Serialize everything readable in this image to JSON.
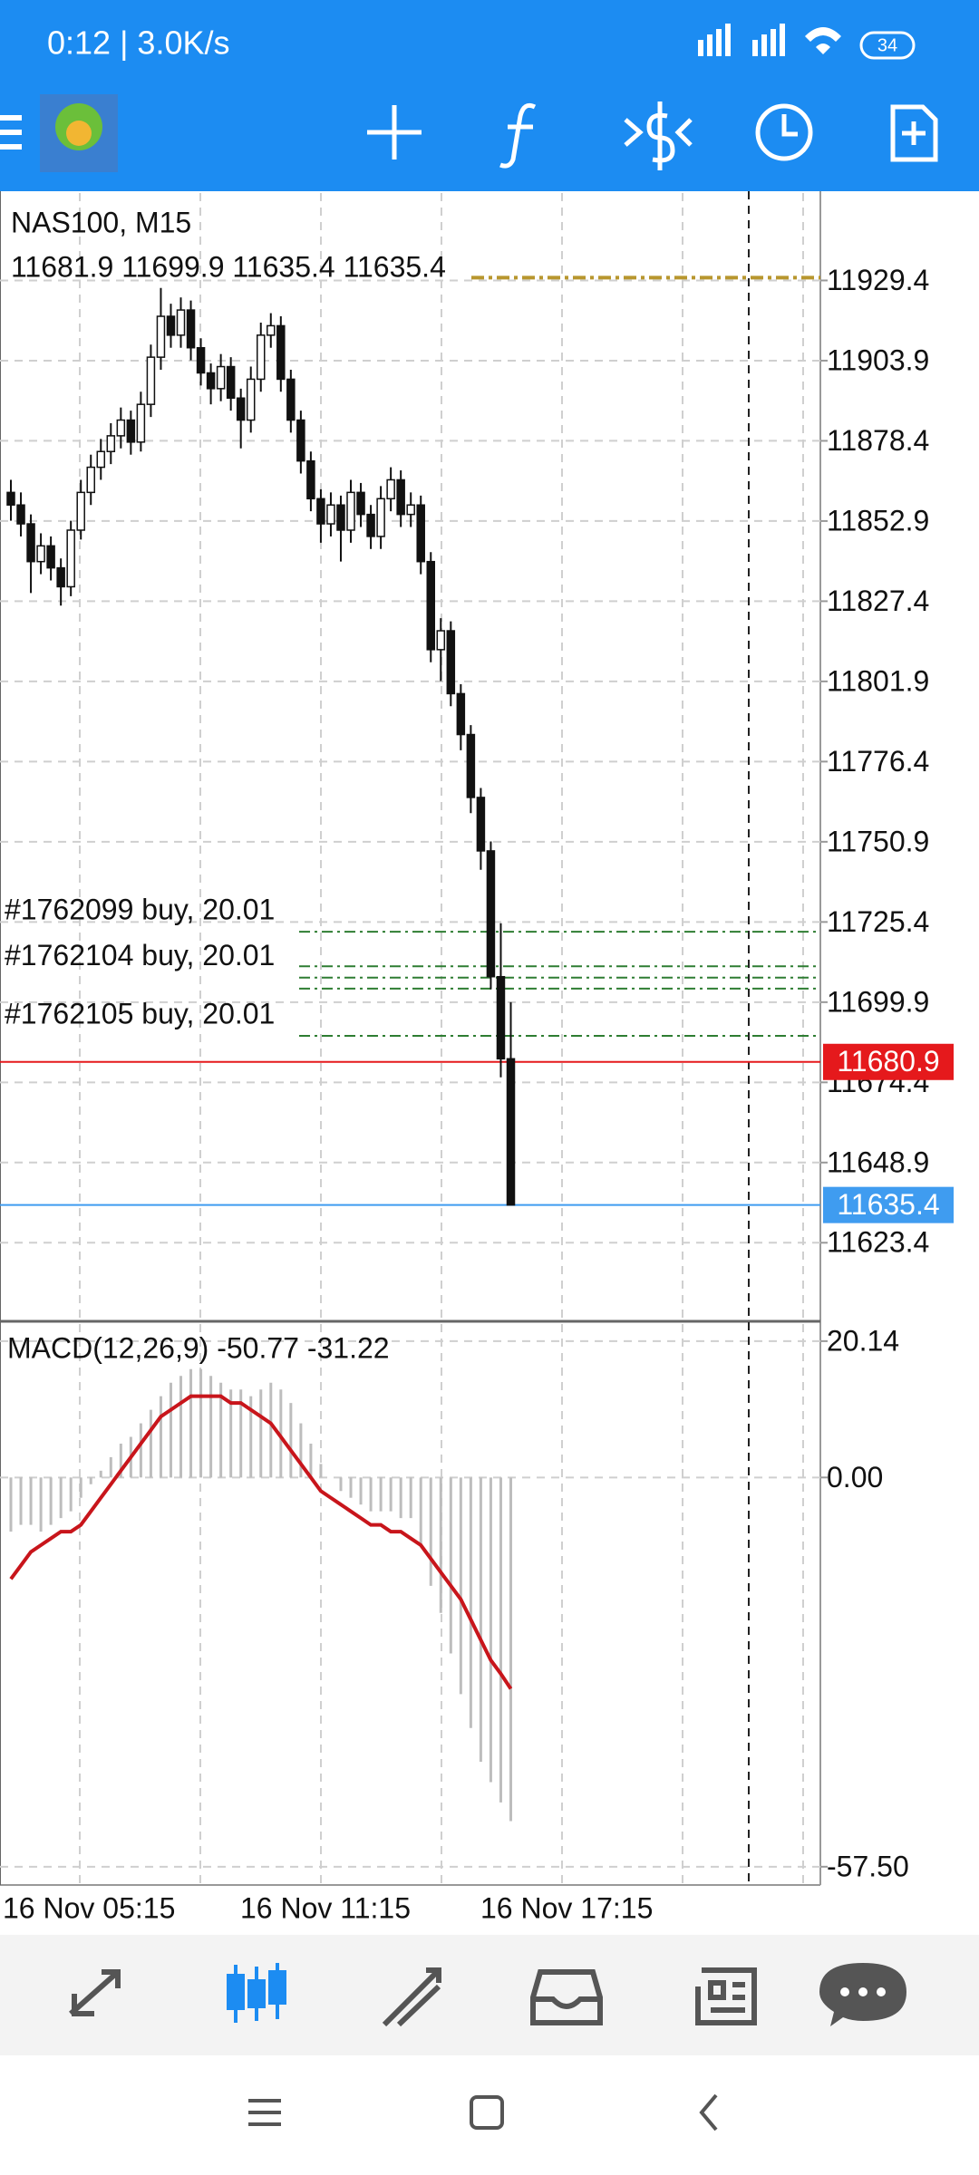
{
  "status_bar": {
    "time_speed": "0:12 | 3.0K/s",
    "battery": "34"
  },
  "chart_data": {
    "type": "candlestick",
    "symbol_label": "NAS100, M15",
    "ohlc_label": "11681.9 11699.9 11635.4 11635.4",
    "open": [
      11862,
      11858,
      11852,
      11840,
      11845,
      11838,
      11832,
      11850,
      11862,
      11870,
      11875,
      11880,
      11885,
      11878,
      11890,
      11905,
      11918,
      11912,
      11920,
      11908,
      11900,
      11895,
      11902,
      11892,
      11885,
      11898,
      11912,
      11915,
      11898,
      11885,
      11872,
      11860,
      11852,
      11858,
      11850,
      11862,
      11855,
      11848,
      11860,
      11866,
      11855,
      11858,
      11840,
      11812,
      11818,
      11798,
      11785,
      11765,
      11748,
      11708,
      11681.9
    ],
    "high": [
      11866,
      11862,
      11855,
      11849,
      11848,
      11841,
      11853,
      11866,
      11874,
      11879,
      11884,
      11889,
      11888,
      11894,
      11909,
      11927,
      11922,
      11924,
      11923,
      11911,
      11903,
      11906,
      11905,
      11895,
      11902,
      11916,
      11919,
      11918,
      11901,
      11888,
      11875,
      11863,
      11862,
      11861,
      11866,
      11865,
      11858,
      11864,
      11870,
      11869,
      11862,
      11861,
      11843,
      11822,
      11821,
      11801,
      11788,
      11768,
      11751,
      11725,
      11699.9
    ],
    "low": [
      11853,
      11848,
      11830,
      11836,
      11834,
      11826,
      11829,
      11847,
      11858,
      11866,
      11871,
      11876,
      11874,
      11875,
      11886,
      11901,
      11908,
      11908,
      11904,
      11896,
      11890,
      11891,
      11888,
      11876,
      11881,
      11894,
      11908,
      11894,
      11881,
      11868,
      11856,
      11846,
      11848,
      11840,
      11846,
      11851,
      11844,
      11844,
      11856,
      11851,
      11851,
      11836,
      11808,
      11802,
      11794,
      11780,
      11760,
      11742,
      11704,
      11676,
      11635.4
    ],
    "close": [
      11858,
      11852,
      11840,
      11845,
      11838,
      11832,
      11850,
      11862,
      11870,
      11875,
      11880,
      11885,
      11878,
      11890,
      11905,
      11918,
      11912,
      11920,
      11908,
      11900,
      11895,
      11902,
      11892,
      11885,
      11898,
      11912,
      11915,
      11898,
      11885,
      11872,
      11860,
      11852,
      11858,
      11850,
      11862,
      11855,
      11848,
      11860,
      11866,
      11855,
      11858,
      11840,
      11812,
      11818,
      11798,
      11785,
      11765,
      11748,
      11708,
      11681.9,
      11635.4
    ],
    "ylim": [
      11598.7,
      11957.2
    ],
    "yticks": [
      11929.4,
      11903.9,
      11878.4,
      11852.9,
      11827.4,
      11801.9,
      11776.4,
      11750.9,
      11725.4,
      11699.9,
      11674.4,
      11648.9,
      11623.4
    ],
    "grid": true,
    "x_labels": [
      "16 Nov 05:15",
      "16 Nov 11:15",
      "16 Nov 17:15"
    ],
    "bid": {
      "value": 11680.9,
      "color": "#e5191c"
    },
    "last": {
      "value": 11635.4,
      "color": "#3f9cf0"
    },
    "tp_level": 11930.3,
    "orders": [
      {
        "label": "#1762099 buy, 20.01",
        "price": 11722.3
      },
      {
        "label": "#1762104 buy, 20.01",
        "price": 11707.7
      },
      {
        "label": "#1762105 buy, 20.01",
        "price": 11689.2
      }
    ],
    "order_levels": [
      11711.3,
      11704.2
    ],
    "macd": {
      "label": "MACD(12,26,9) -50.77 -31.22",
      "histogram": [
        -8,
        -7,
        -7,
        -8,
        -7,
        -6,
        -5,
        -3,
        -1,
        1,
        3,
        5,
        6,
        8,
        10,
        12,
        14,
        15,
        16,
        16,
        15,
        14,
        13,
        13,
        12,
        13,
        14,
        13,
        11,
        8,
        5,
        2,
        0,
        -2,
        -3,
        -4,
        -5,
        -5,
        -5,
        -6,
        -6,
        -10,
        -16,
        -20,
        -26,
        -32,
        -37,
        -42,
        -45,
        -48,
        -50.77
      ],
      "signal": [
        -15,
        -13,
        -11,
        -10,
        -9,
        -8,
        -8,
        -7,
        -5,
        -3,
        -1,
        1,
        3,
        5,
        7,
        9,
        10,
        11,
        12,
        12,
        12,
        12,
        11,
        11,
        10,
        9,
        8,
        6,
        4,
        2,
        0,
        -2,
        -3,
        -4,
        -5,
        -6,
        -7,
        -7,
        -8,
        -8,
        -9,
        -10,
        -12,
        -14,
        -16,
        -18,
        -21,
        -24,
        -27,
        -29,
        -31.22
      ],
      "histogram_color": "#bdbdbd",
      "signal_color": "#c8151b",
      "ylim": [
        -60.2,
        22.8
      ],
      "yticks": [
        20.14,
        {
          "value": 0,
          "label": "0.00"
        },
        {
          "value": -57.5,
          "label": "-57.50"
        }
      ]
    }
  }
}
